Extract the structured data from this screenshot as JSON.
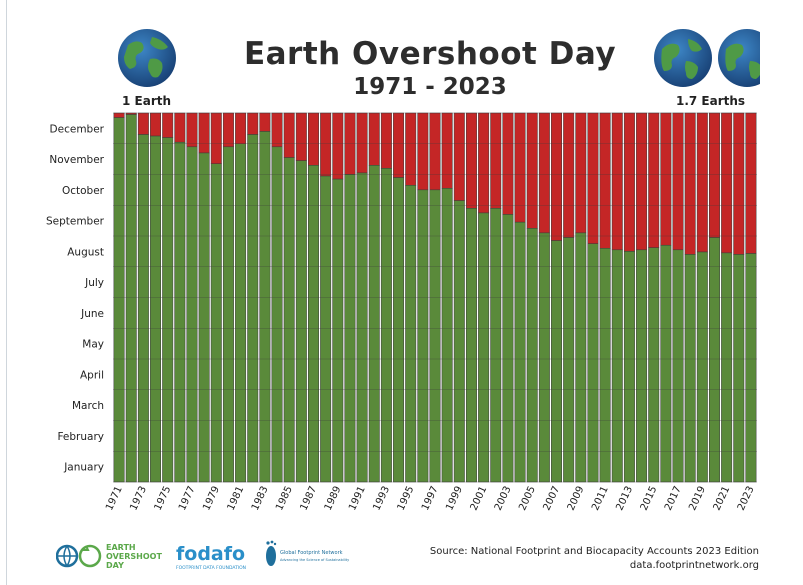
{
  "chart_data": {
    "type": "bar",
    "title": "Earth Overshoot Day",
    "subtitle": "1971 - 2023",
    "left_label": "1 Earth",
    "right_label": "1.7 Earths",
    "y_ticks": [
      "January",
      "February",
      "March",
      "April",
      "May",
      "June",
      "July",
      "August",
      "September",
      "October",
      "November",
      "December"
    ],
    "x_tick_labels": [
      "1971",
      "1973",
      "1975",
      "1977",
      "1979",
      "1981",
      "1983",
      "1985",
      "1987",
      "1989",
      "1991",
      "1993",
      "1995",
      "1997",
      "1999",
      "2001",
      "2003",
      "2005",
      "2007",
      "2009",
      "2011",
      "2013",
      "2015",
      "2017",
      "2019",
      "2021",
      "2023"
    ],
    "ylim": [
      0,
      12
    ],
    "series": [
      {
        "color": "#5a8a3a"
      },
      {
        "color": "#c42626"
      }
    ],
    "categories": [
      1971,
      1972,
      1973,
      1974,
      1975,
      1976,
      1977,
      1978,
      1979,
      1980,
      1981,
      1982,
      1983,
      1984,
      1985,
      1986,
      1987,
      1988,
      1989,
      1990,
      1991,
      1992,
      1993,
      1994,
      1995,
      1996,
      1997,
      1998,
      1999,
      2000,
      2001,
      2002,
      2003,
      2004,
      2005,
      2006,
      2007,
      2008,
      2009,
      2010,
      2011,
      2012,
      2013,
      2014,
      2015,
      2016,
      2017,
      2018,
      2019,
      2020,
      2021,
      2022,
      2023
    ],
    "values": [
      11.85,
      11.95,
      11.3,
      11.25,
      11.2,
      11.05,
      10.9,
      10.7,
      10.35,
      10.9,
      11.0,
      11.3,
      11.4,
      10.9,
      10.55,
      10.45,
      10.3,
      9.95,
      9.85,
      10.0,
      10.05,
      10.3,
      10.2,
      9.9,
      9.65,
      9.5,
      9.5,
      9.55,
      9.15,
      8.9,
      8.75,
      8.9,
      8.7,
      8.45,
      8.25,
      8.1,
      7.85,
      7.95,
      8.1,
      7.75,
      7.6,
      7.55,
      7.5,
      7.55,
      7.62,
      7.7,
      7.55,
      7.4,
      7.48,
      7.95,
      7.45,
      7.4,
      7.43
    ]
  },
  "source": {
    "line1": "Source: National Footprint and Biocapacity Accounts 2023 Edition",
    "line2": "data.footprintnetwork.org"
  },
  "logos": {
    "eod_line1": "EARTH",
    "eod_line2": "OVERSHOOT",
    "eod_line3": "DAY",
    "fodafo": "fodafo",
    "fodafo_sub": "FOOTPRINT DATA FOUNDATION",
    "gfn_line1": "Global Footprint Network",
    "gfn_line2": "Advancing the Science of Sustainability"
  }
}
